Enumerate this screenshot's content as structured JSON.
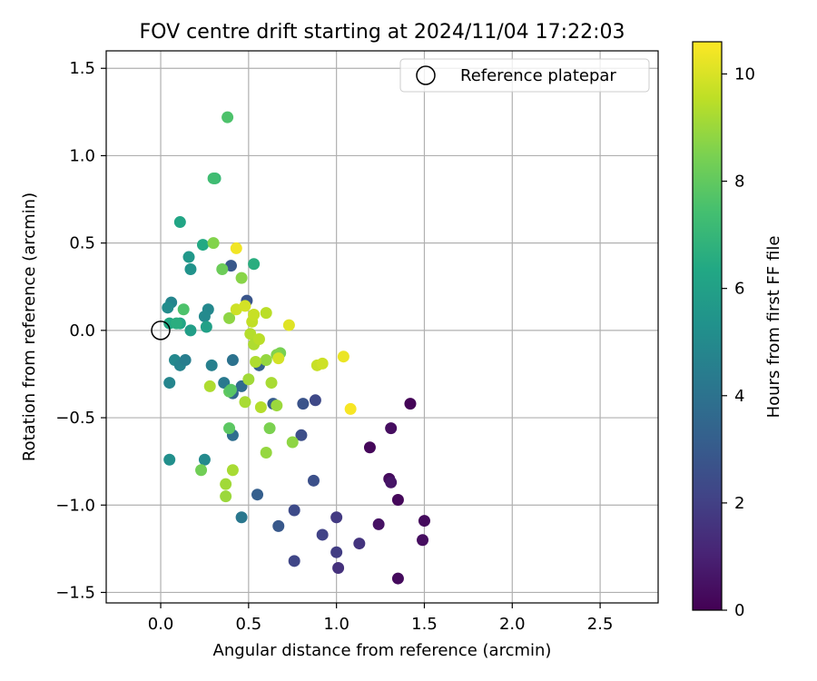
{
  "chart_data": {
    "type": "scatter",
    "title": "FOV centre drift starting at 2024/11/04 17:22:03",
    "xlabel": "Angular distance from reference (arcmin)",
    "ylabel": "Rotation from reference (arcmin)",
    "xlim": [
      -0.31,
      2.83
    ],
    "ylim": [
      -1.56,
      1.6
    ],
    "x_ticks": [
      0.0,
      0.5,
      1.0,
      1.5,
      2.0,
      2.5
    ],
    "x_tick_labels": [
      "0.0",
      "0.5",
      "1.0",
      "1.5",
      "2.0",
      "2.5"
    ],
    "y_ticks": [
      -1.5,
      -1.0,
      -0.5,
      0.0,
      0.5,
      1.0,
      1.5
    ],
    "y_tick_labels": [
      "−1.5",
      "−1.0",
      "−0.5",
      "0.0",
      "0.5",
      "1.0",
      "1.5"
    ],
    "grid": true,
    "legend": {
      "placement": "top-right",
      "entries": [
        "Reference platepar"
      ]
    },
    "reference_point": {
      "x": 0.0,
      "y": 0.0
    },
    "colorbar": {
      "label": "Hours from first FF file",
      "colormap": "viridis",
      "range": [
        0,
        10.6
      ],
      "ticks": [
        0,
        2,
        4,
        6,
        8,
        10
      ],
      "tick_labels": [
        "0",
        "2",
        "4",
        "6",
        "8",
        "10"
      ]
    },
    "points": [
      {
        "x": 1.35,
        "y": -1.42,
        "c": 0.3
      },
      {
        "x": 1.42,
        "y": -0.42,
        "c": 0.1
      },
      {
        "x": 1.31,
        "y": -0.56,
        "c": 0.4
      },
      {
        "x": 1.19,
        "y": -0.67,
        "c": 0.2
      },
      {
        "x": 1.3,
        "y": -0.85,
        "c": 0.3
      },
      {
        "x": 1.31,
        "y": -0.87,
        "c": 0.6
      },
      {
        "x": 1.35,
        "y": -0.97,
        "c": 0.2
      },
      {
        "x": 1.24,
        "y": -1.11,
        "c": 0.5
      },
      {
        "x": 1.5,
        "y": -1.09,
        "c": 0.3
      },
      {
        "x": 1.49,
        "y": -1.2,
        "c": 0.4
      },
      {
        "x": 1.13,
        "y": -1.22,
        "c": 1.6
      },
      {
        "x": 1.0,
        "y": -1.07,
        "c": 1.8
      },
      {
        "x": 1.0,
        "y": -1.27,
        "c": 1.9
      },
      {
        "x": 1.01,
        "y": -1.36,
        "c": 1.5
      },
      {
        "x": 0.92,
        "y": -1.17,
        "c": 2.1
      },
      {
        "x": 0.76,
        "y": -1.32,
        "c": 2.2
      },
      {
        "x": 0.76,
        "y": -1.03,
        "c": 2.4
      },
      {
        "x": 0.67,
        "y": -1.12,
        "c": 2.9
      },
      {
        "x": 0.87,
        "y": -0.86,
        "c": 2.6
      },
      {
        "x": 0.8,
        "y": -0.6,
        "c": 2.5
      },
      {
        "x": 0.81,
        "y": -0.42,
        "c": 2.7
      },
      {
        "x": 0.88,
        "y": -0.4,
        "c": 2.3
      },
      {
        "x": 0.55,
        "y": -0.94,
        "c": 3.2
      },
      {
        "x": 0.46,
        "y": -1.07,
        "c": 4.2
      },
      {
        "x": 0.41,
        "y": -0.6,
        "c": 3.8
      },
      {
        "x": 0.56,
        "y": -0.2,
        "c": 3.3
      },
      {
        "x": 0.64,
        "y": -0.42,
        "c": 3.1
      },
      {
        "x": 0.41,
        "y": -0.36,
        "c": 3.5
      },
      {
        "x": 0.46,
        "y": -0.32,
        "c": 3.7
      },
      {
        "x": 0.36,
        "y": -0.3,
        "c": 4.3
      },
      {
        "x": 0.41,
        "y": -0.17,
        "c": 4.0
      },
      {
        "x": 0.29,
        "y": -0.2,
        "c": 4.6
      },
      {
        "x": 0.4,
        "y": 0.37,
        "c": 2.9
      },
      {
        "x": 0.49,
        "y": 0.17,
        "c": 2.8
      },
      {
        "x": 0.27,
        "y": 0.12,
        "c": 4.9
      },
      {
        "x": 0.25,
        "y": 0.08,
        "c": 5.0
      },
      {
        "x": 0.06,
        "y": 0.16,
        "c": 4.8
      },
      {
        "x": 0.04,
        "y": 0.13,
        "c": 5.1
      },
      {
        "x": 0.08,
        "y": -0.17,
        "c": 4.9
      },
      {
        "x": 0.11,
        "y": -0.2,
        "c": 4.7
      },
      {
        "x": 0.14,
        "y": -0.17,
        "c": 4.5
      },
      {
        "x": 0.05,
        "y": -0.3,
        "c": 4.8
      },
      {
        "x": 0.05,
        "y": -0.74,
        "c": 5.2
      },
      {
        "x": 0.25,
        "y": -0.74,
        "c": 5.0
      },
      {
        "x": 0.17,
        "y": 0.35,
        "c": 5.4
      },
      {
        "x": 0.16,
        "y": 0.42,
        "c": 5.6
      },
      {
        "x": 0.17,
        "y": 0.0,
        "c": 5.9
      },
      {
        "x": 0.26,
        "y": 0.02,
        "c": 6.0
      },
      {
        "x": 0.11,
        "y": 0.04,
        "c": 6.2
      },
      {
        "x": 0.05,
        "y": 0.04,
        "c": 6.4
      },
      {
        "x": 0.09,
        "y": 0.04,
        "c": 6.6
      },
      {
        "x": 0.11,
        "y": 0.62,
        "c": 6.2
      },
      {
        "x": 0.24,
        "y": 0.49,
        "c": 6.4
      },
      {
        "x": 0.53,
        "y": 0.38,
        "c": 6.6
      },
      {
        "x": 0.31,
        "y": 0.87,
        "c": 7.1
      },
      {
        "x": 0.3,
        "y": 0.87,
        "c": 7.3
      },
      {
        "x": 0.38,
        "y": 1.22,
        "c": 7.6
      },
      {
        "x": 0.13,
        "y": 0.12,
        "c": 7.6
      },
      {
        "x": 0.35,
        "y": 0.35,
        "c": 8.2
      },
      {
        "x": 0.3,
        "y": 0.5,
        "c": 8.6
      },
      {
        "x": 0.39,
        "y": -0.35,
        "c": 8.0
      },
      {
        "x": 0.4,
        "y": -0.34,
        "c": 7.8
      },
      {
        "x": 0.39,
        "y": -0.56,
        "c": 7.9
      },
      {
        "x": 0.23,
        "y": -0.8,
        "c": 8.3
      },
      {
        "x": 0.39,
        "y": 0.07,
        "c": 8.8
      },
      {
        "x": 0.46,
        "y": 0.3,
        "c": 8.7
      },
      {
        "x": 0.62,
        "y": -0.56,
        "c": 8.5
      },
      {
        "x": 0.6,
        "y": -0.7,
        "c": 8.9
      },
      {
        "x": 0.75,
        "y": -0.64,
        "c": 8.8
      },
      {
        "x": 0.68,
        "y": -0.13,
        "c": 8.4
      },
      {
        "x": 0.66,
        "y": -0.14,
        "c": 8.6
      },
      {
        "x": 0.6,
        "y": -0.17,
        "c": 8.9
      },
      {
        "x": 0.54,
        "y": -0.18,
        "c": 9.3
      },
      {
        "x": 0.5,
        "y": -0.28,
        "c": 9.1
      },
      {
        "x": 0.48,
        "y": -0.41,
        "c": 9.2
      },
      {
        "x": 0.57,
        "y": -0.44,
        "c": 9.4
      },
      {
        "x": 0.63,
        "y": -0.3,
        "c": 9.2
      },
      {
        "x": 0.66,
        "y": -0.43,
        "c": 9.0
      },
      {
        "x": 0.28,
        "y": -0.32,
        "c": 9.3
      },
      {
        "x": 0.41,
        "y": -0.8,
        "c": 9.2
      },
      {
        "x": 0.37,
        "y": -0.88,
        "c": 9.1
      },
      {
        "x": 0.37,
        "y": -0.95,
        "c": 9.0
      },
      {
        "x": 0.51,
        "y": -0.02,
        "c": 9.4
      },
      {
        "x": 0.53,
        "y": -0.08,
        "c": 9.3
      },
      {
        "x": 0.56,
        "y": -0.05,
        "c": 9.5
      },
      {
        "x": 0.52,
        "y": 0.05,
        "c": 9.6
      },
      {
        "x": 0.53,
        "y": 0.09,
        "c": 9.7
      },
      {
        "x": 0.6,
        "y": 0.1,
        "c": 9.5
      },
      {
        "x": 0.43,
        "y": 0.12,
        "c": 9.8
      },
      {
        "x": 0.48,
        "y": 0.14,
        "c": 9.9
      },
      {
        "x": 0.67,
        "y": -0.16,
        "c": 9.9
      },
      {
        "x": 0.73,
        "y": 0.03,
        "c": 10.1
      },
      {
        "x": 0.89,
        "y": -0.2,
        "c": 9.7
      },
      {
        "x": 0.92,
        "y": -0.19,
        "c": 9.8
      },
      {
        "x": 1.04,
        "y": -0.15,
        "c": 10.3
      },
      {
        "x": 1.08,
        "y": -0.45,
        "c": 10.5
      },
      {
        "x": 0.43,
        "y": 0.47,
        "c": 10.4
      }
    ]
  }
}
